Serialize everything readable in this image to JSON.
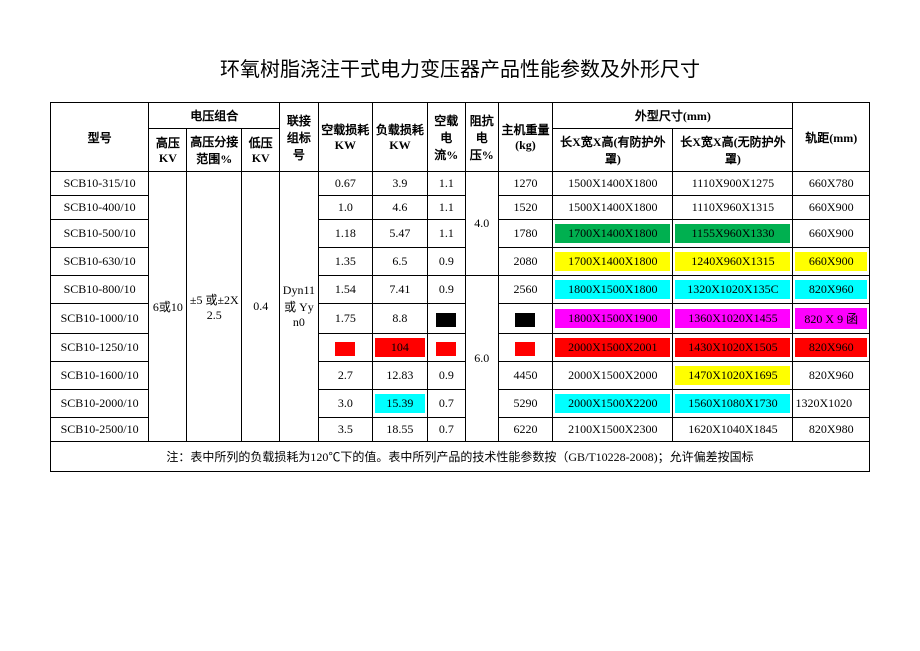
{
  "title": "环氧树脂浇注干式电力变压器产品性能参数及外形尺寸",
  "colgroup": [
    90,
    35,
    50,
    35,
    35,
    50,
    50,
    35,
    30,
    50,
    110,
    110,
    70
  ],
  "headers": {
    "model": "型号",
    "voltage_combo": "电压组合",
    "hv": "高压KV",
    "tap": "高压分接范围%",
    "lv": "低压KV",
    "conn": "联接组标号",
    "noload_loss": "空载损耗KW",
    "load_loss": "负载损耗KW",
    "noload_cur": "空载电流%",
    "imp": "阻抗电压%",
    "weight": "主机重量(kg)",
    "dim_group": "外型尺寸(mm)",
    "dim_cover": "长X宽X高(有防护外罩)",
    "dim_nocover": "长X宽X高(无防护外罩)",
    "track": "轨距(mm)"
  },
  "shared": {
    "hv": "6或10",
    "tap": "±5 或±2X2.5",
    "lv": "0.4",
    "conn": "Dyn11 或 Yyn0",
    "imp1": "4.0",
    "imp2": "6.0"
  },
  "colors": {
    "green": "#00b050",
    "yellow": "#ffff00",
    "cyan": "#00ffff",
    "magenta": "#ff00ff",
    "red": "#ff0000",
    "black": "#000000",
    "red2": "#c00000"
  },
  "rows": [
    {
      "model": "SCB10-315/10",
      "nl": "0.67",
      "ll": "3.9",
      "nc": "1.1",
      "wt": "1270",
      "d1": "1500X1400X1800",
      "d2": "1110X900X1275",
      "tr": "660X780"
    },
    {
      "model": "SCB10-400/10",
      "nl": "1.0",
      "ll": "4.6",
      "nc": "1.1",
      "wt": "1520",
      "d1": "1500X1400X1800",
      "d2": "1110X960X1315",
      "tr": "660X900"
    },
    {
      "model": "SCB10-500/10",
      "nl": "1.18",
      "ll": "5.47",
      "nc": "1.1",
      "wt": "1780",
      "d1": "1700X1400X1800",
      "d1c": "green",
      "d2": "1155X960X1330",
      "d2c": "green",
      "tr": "660X900"
    },
    {
      "model": "SCB10-630/10",
      "nl": "1.35",
      "ll": "6.5",
      "nc": "0.9",
      "wt": "2080",
      "d1": "1700X1400X1800",
      "d1c": "yellow",
      "d2": "1240X960X1315",
      "d2c": "yellow",
      "tr": "660X900",
      "trc": "yellow"
    },
    {
      "model": "SCB10-800/10",
      "nl": "1.54",
      "ll": "7.41",
      "nc": "0.9",
      "wt": "2560",
      "d1": "1800X1500X1800",
      "d1c": "cyan",
      "d2": "1320X1020X135C",
      "d2c": "cyan",
      "tr": "820X960",
      "trc": "cyan"
    },
    {
      "model": "SCB10-1000/10",
      "nl": "1.75",
      "ll": "8.8",
      "nc_sw": "black",
      "wt_sw": "black",
      "d1": "1800X1500X1900",
      "d1c": "magenta",
      "d2": "1360X1020X1455",
      "d2c": "magenta",
      "tr": "820 X 9 函",
      "trc": "magenta"
    },
    {
      "model": "SCB10-1250/10",
      "nl_sw": "red",
      "ll": "104",
      "llc": "red",
      "nc_sw": "red",
      "wt_sw": "red",
      "d1": "2000X1500X2001",
      "d1c": "red",
      "d2": "1430X1020X1505",
      "d2c": "red",
      "tr": "820X960",
      "trc": "red"
    },
    {
      "model": "SCB10-1600/10",
      "nl": "2.7",
      "ll": "12.83",
      "nc": "0.9",
      "wt": "4450",
      "d1": "2000X1500X2000",
      "d2": "1470X1020X1695",
      "d2c": "yellow",
      "tr": "820X960"
    },
    {
      "model": "SCB10-2000/10",
      "nl": "3.0",
      "ll": "15.39",
      "llc": "cyan",
      "nc": "0.7",
      "wt": "5290",
      "d1": "2000X1500X2200",
      "d1c": "cyan",
      "d2": "1560X1080X1730",
      "d2c": "cyan",
      "tr": "1320X1020",
      "tr_pre": "1"
    },
    {
      "model": "SCB10-2500/10",
      "nl": "3.5",
      "ll": "18.55",
      "nc": "0.7",
      "wt": "6220",
      "d1": "2100X1500X2300",
      "d2": "1620X1040X1845",
      "tr": "820X980"
    }
  ],
  "note": "注：表中所列的负载损耗为120℃下的值。表中所列产品的技术性能参数按（GB/T10228-2008)；允许偏差按国标"
}
